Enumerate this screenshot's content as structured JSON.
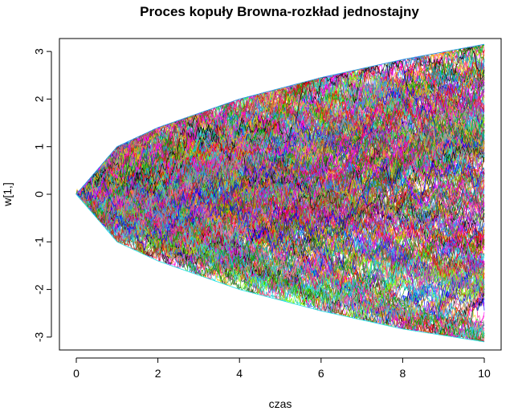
{
  "chart_data": {
    "type": "line",
    "title": "Proces kopuły Browna-rozkład jednostajny",
    "xlabel": "czas",
    "ylabel": "w[1,]",
    "xlim": [
      0,
      10
    ],
    "ylim": [
      -3.1,
      3.15
    ],
    "x_ticks": [
      0,
      2,
      4,
      6,
      8,
      10
    ],
    "y_ticks": [
      -3,
      -2,
      -1,
      0,
      1,
      2,
      3
    ],
    "grid": false,
    "legend": "none",
    "n_paths": 300,
    "envelope_upper": {
      "x": [
        0,
        1,
        2,
        4,
        6,
        8,
        10
      ],
      "y": [
        0,
        1.0,
        1.4,
        2.0,
        2.45,
        2.83,
        3.15
      ]
    },
    "envelope_lower": {
      "x": [
        0,
        1,
        2,
        4,
        6,
        8,
        10
      ],
      "y": [
        0,
        -1.0,
        -1.4,
        -2.0,
        -2.45,
        -2.83,
        -3.1
      ]
    },
    "colors": [
      "#000000",
      "#DF536B",
      "#61D04F",
      "#2297E6",
      "#28E2E5",
      "#CD0BBC",
      "#F5C710",
      "#9E9E9E",
      "#ff0000",
      "#00aa00",
      "#0000ff",
      "#ff00ff",
      "#00cccc",
      "#ffa500",
      "#a52a2a",
      "#7fff00",
      "#8a2be2",
      "#ff1493",
      "#1e90ff",
      "#228b22",
      "#b22222",
      "#808000",
      "#2f4f4f",
      "#ff69b4"
    ]
  }
}
